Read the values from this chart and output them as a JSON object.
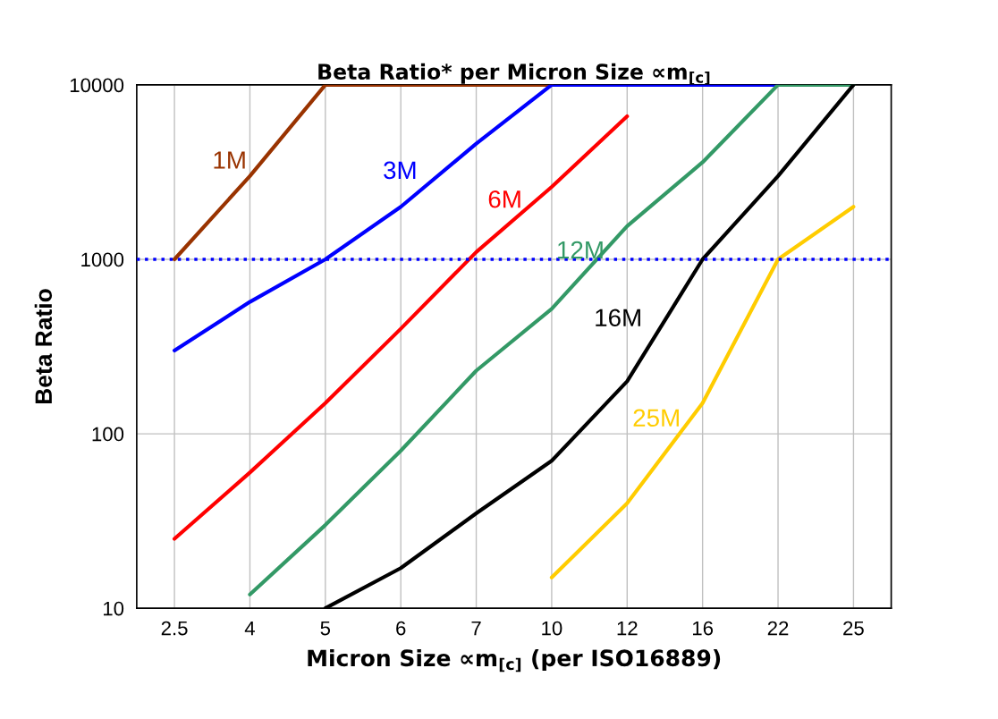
{
  "chart_data": {
    "type": "line",
    "title": "Beta Ratio* per Micron Size ∝m$_{[c]}$",
    "xlabel": "Micron Size ∝m$_{[c]}$ (per ISO16889)",
    "ylabel": "Beta Ratio",
    "categories": [
      "2.5",
      "4",
      "5",
      "6",
      "7",
      "10",
      "12",
      "16",
      "22",
      "25"
    ],
    "log": true,
    "ylim": [
      10,
      10000
    ],
    "yticks": [
      10,
      100,
      1000,
      10000
    ],
    "grid": true,
    "legend": false,
    "marker": "none",
    "line_style": "solid",
    "ref_lines": [
      {
        "axis": "y",
        "value": 1000,
        "color": "#0000ff",
        "line_style": "dotted"
      }
    ],
    "series": [
      {
        "name": "1M",
        "color": "#993300",
        "values": [
          1000,
          3000,
          10000,
          10000,
          10000,
          10000,
          null,
          null,
          null,
          null
        ]
      },
      {
        "name": "3M",
        "color": "#0000ff",
        "values": [
          300,
          570,
          1000,
          2000,
          4600,
          10000,
          10000,
          10000,
          10000,
          null
        ]
      },
      {
        "name": "6M",
        "color": "#ff0000",
        "values": [
          25,
          60,
          150,
          400,
          1100,
          2600,
          6600,
          null,
          null,
          null
        ]
      },
      {
        "name": "12M",
        "color": "#339966",
        "values": [
          null,
          12,
          30,
          80,
          230,
          520,
          1550,
          3600,
          10000,
          10000
        ]
      },
      {
        "name": "16M",
        "color": "#000000",
        "values": [
          null,
          null,
          10,
          17,
          35,
          70,
          200,
          1000,
          3000,
          10000
        ]
      },
      {
        "name": "25M",
        "color": "#ffcc00",
        "values": [
          null,
          null,
          null,
          null,
          null,
          15,
          40,
          150,
          1000,
          2000
        ]
      }
    ]
  }
}
